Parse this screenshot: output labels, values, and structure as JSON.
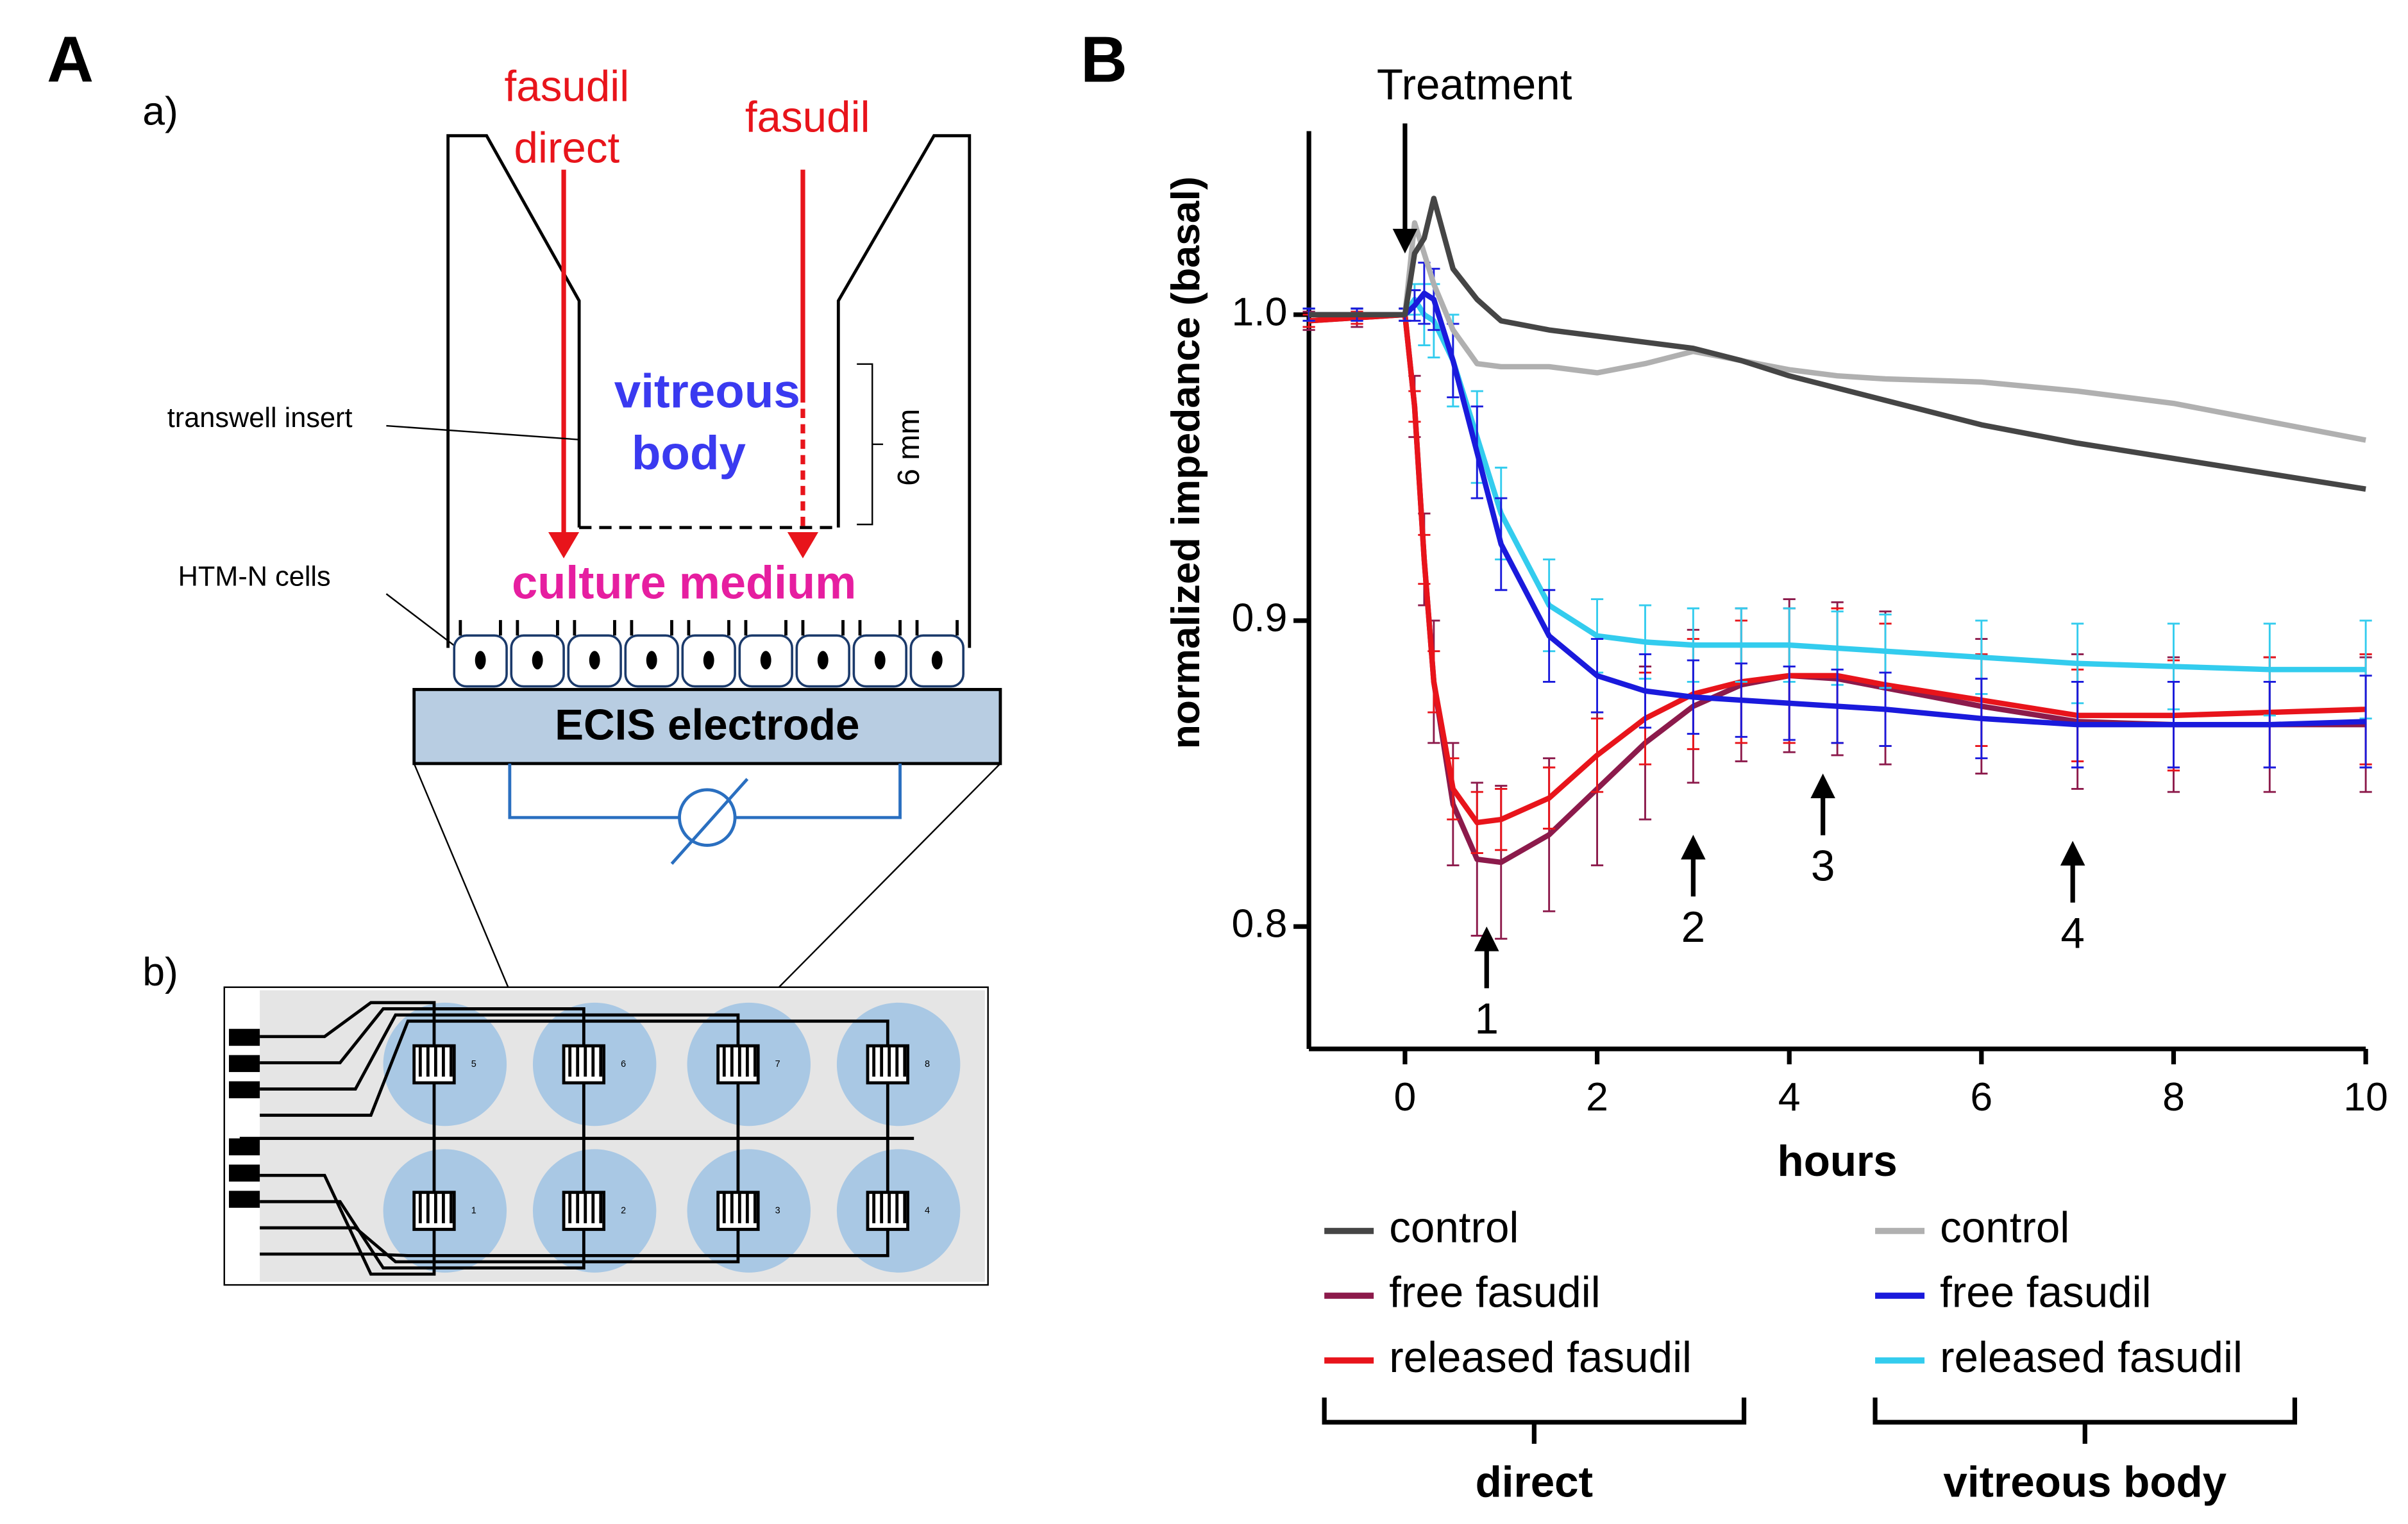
{
  "diagram": {
    "panel_a": "A",
    "sub_a": "a)",
    "sub_b": "b)",
    "direct_label": [
      "fasudil",
      "direct"
    ],
    "fasudil_label": "fasudil",
    "vitreous_label": [
      "vitreous",
      "body"
    ],
    "insert_label": "transwell insert",
    "height_label": "6 mm",
    "cells_label": "HTM-N cells",
    "medium_label": "culture medium",
    "electrode_label": "ECIS electrode",
    "well_numbers": [
      "5",
      "6",
      "7",
      "8",
      "1",
      "2",
      "3",
      "4"
    ]
  },
  "chart_data": {
    "type": "line",
    "panel": "B",
    "x_label": "hours",
    "y_label": "normalized impedance (basal)",
    "x": [
      -1,
      -0.5,
      0,
      0.1,
      0.2,
      0.3,
      0.5,
      0.75,
      1,
      1.5,
      2,
      2.5,
      3,
      3.5,
      4,
      4.5,
      5,
      6,
      7,
      8,
      9,
      10
    ],
    "xlim": [
      -1,
      10
    ],
    "xticks": [
      0,
      2,
      4,
      6,
      8,
      10
    ],
    "ylim": [
      0.76,
      1.06
    ],
    "yticks": [
      0.8,
      0.9,
      {
        "value": 1,
        "label": "1.0"
      }
    ],
    "legend_groups": [
      "direct",
      "vitreous body"
    ],
    "series": [
      {
        "name": "control",
        "color": "#454545",
        "values": [
          1.0,
          1.0,
          1.0,
          1.02,
          1.025,
          1.038,
          1.015,
          1.005,
          0.998,
          0.995,
          0.993,
          0.991,
          0.989,
          0.985,
          0.98,
          0.976,
          0.972,
          0.964,
          0.958,
          0.953,
          0.948,
          0.943
        ]
      },
      {
        "name": "free fasudil",
        "color": "#8c1a4b",
        "values": [
          0.998,
          0.999,
          1.0,
          0.97,
          0.92,
          0.88,
          0.84,
          0.822,
          0.821,
          0.83,
          0.845,
          0.86,
          0.872,
          0.879,
          0.882,
          0.881,
          0.878,
          0.872,
          0.867,
          0.866,
          0.866,
          0.866
        ],
        "errors": [
          0.003,
          0.003,
          0.002,
          0.01,
          0.015,
          0.02,
          0.02,
          0.025,
          0.025,
          0.025,
          0.025,
          0.025,
          0.025,
          0.025,
          0.025,
          0.025,
          0.025,
          0.022,
          0.022,
          0.022,
          0.022,
          0.022
        ]
      },
      {
        "name": "released fasudil",
        "color": "#e8141b",
        "values": [
          0.998,
          0.999,
          1.0,
          0.97,
          0.92,
          0.88,
          0.845,
          0.834,
          0.835,
          0.842,
          0.856,
          0.868,
          0.876,
          0.88,
          0.882,
          0.882,
          0.879,
          0.874,
          0.869,
          0.869,
          0.87,
          0.871
        ],
        "errors": [
          0.002,
          0.002,
          0.002,
          0.005,
          0.008,
          0.01,
          0.01,
          0.01,
          0.01,
          0.01,
          0.012,
          0.015,
          0.018,
          0.02,
          0.022,
          0.022,
          0.02,
          0.015,
          0.015,
          0.018,
          0.018,
          0.018
        ]
      },
      {
        "name": "control",
        "color": "#b0b0b0",
        "values": [
          1.0,
          1.0,
          1.0,
          1.03,
          1.02,
          1.01,
          0.995,
          0.984,
          0.983,
          0.983,
          0.981,
          0.984,
          0.988,
          0.985,
          0.982,
          0.98,
          0.979,
          0.978,
          0.975,
          0.971,
          0.965,
          0.959
        ]
      },
      {
        "name": "free fasudil",
        "color": "#1a1adc",
        "values": [
          1.0,
          1.0,
          1.0,
          1.003,
          1.007,
          1.005,
          0.985,
          0.955,
          0.925,
          0.895,
          0.882,
          0.877,
          0.875,
          0.874,
          0.873,
          0.872,
          0.871,
          0.868,
          0.866,
          0.866,
          0.866,
          0.867
        ],
        "errors": [
          0.002,
          0.002,
          0.002,
          0.005,
          0.01,
          0.01,
          0.012,
          0.015,
          0.015,
          0.015,
          0.012,
          0.012,
          0.012,
          0.012,
          0.012,
          0.012,
          0.012,
          0.013,
          0.014,
          0.014,
          0.014,
          0.015
        ]
      },
      {
        "name": "released fasudil",
        "color": "#33ccee",
        "values": [
          1.0,
          1.0,
          1.0,
          1.005,
          1.0,
          0.998,
          0.985,
          0.96,
          0.935,
          0.905,
          0.895,
          0.893,
          0.892,
          0.892,
          0.892,
          0.891,
          0.89,
          0.888,
          0.886,
          0.885,
          0.884,
          0.884
        ],
        "errors": [
          0.002,
          0.002,
          0.002,
          0.005,
          0.01,
          0.012,
          0.015,
          0.015,
          0.015,
          0.015,
          0.012,
          0.012,
          0.012,
          0.012,
          0.012,
          0.012,
          0.012,
          0.012,
          0.013,
          0.014,
          0.015,
          0.016
        ]
      }
    ],
    "annotations": [
      {
        "text": "Treatment",
        "x": 0,
        "y": 1.02
      },
      {
        "text": "1",
        "x": 0.85,
        "y": 0.8
      },
      {
        "text": "2",
        "x": 3,
        "y": 0.83
      },
      {
        "text": "3",
        "x": 4.35,
        "y": 0.85
      },
      {
        "text": "4",
        "x": 6.95,
        "y": 0.828
      }
    ]
  }
}
